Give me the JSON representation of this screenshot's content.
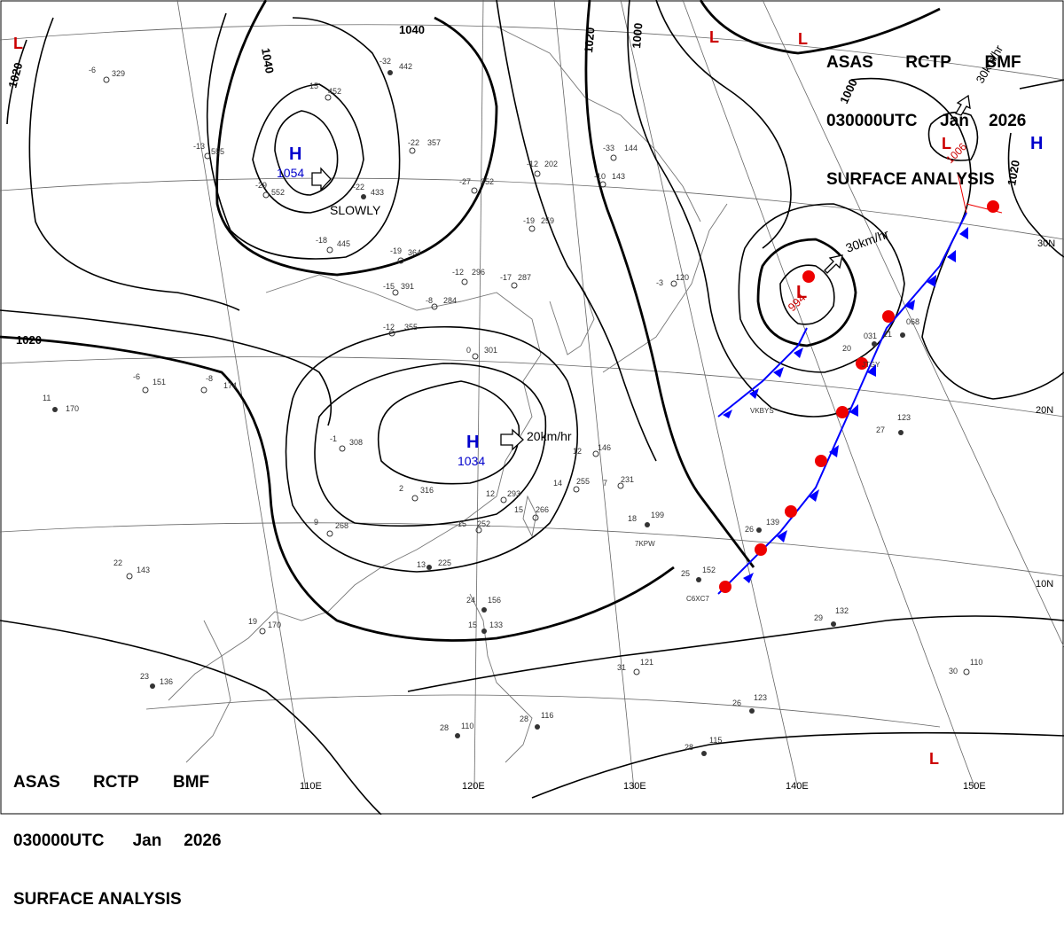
{
  "header": {
    "center": "ASAS",
    "issuer": "RCTP",
    "agency": "BMF",
    "time": "030000UTC",
    "month": "Jan",
    "year": "2026",
    "title": "SURFACE ANALYSIS"
  },
  "pressure_centers": [
    {
      "type": "H",
      "pressure": "1054",
      "motion": "SLOWLY",
      "color": "#0000cc"
    },
    {
      "type": "H",
      "pressure": "1034",
      "motion": "20km/hr",
      "color": "#0000cc"
    },
    {
      "type": "L",
      "pressure": "994",
      "motion": "30km/hr",
      "color": "#cc0000"
    },
    {
      "type": "L",
      "pressure": "1006",
      "motion": "30km/hr",
      "color": "#cc0000"
    },
    {
      "type": "H",
      "pressure": "",
      "motion": "",
      "color": "#0000cc"
    },
    {
      "type": "L",
      "pressure": "",
      "motion": "",
      "color": "#cc0000"
    }
  ],
  "isobar_labels": [
    "1040",
    "1040",
    "1020",
    "1020",
    "1020",
    "1000",
    "1000",
    "1020"
  ],
  "longitude_labels": [
    "110E",
    "120E",
    "130E",
    "140E",
    "150E"
  ],
  "latitude_labels": [
    "30N",
    "20N",
    "10N"
  ],
  "stations": [
    {
      "temp": "-6",
      "pres": "329"
    },
    {
      "temp": "-15",
      "pres": "452"
    },
    {
      "temp": "-32",
      "pres": "442"
    },
    {
      "temp": "-13",
      "pres": "555"
    },
    {
      "temp": "-29",
      "pres": "552"
    },
    {
      "temp": "-22",
      "pres": "433"
    },
    {
      "temp": "-22",
      "pres": "357"
    },
    {
      "temp": "-27",
      "pres": "352"
    },
    {
      "temp": "-12",
      "pres": "202"
    },
    {
      "temp": "-33",
      "pres": "144"
    },
    {
      "temp": "-10",
      "pres": "143"
    },
    {
      "temp": "-18",
      "pres": "445"
    },
    {
      "temp": "-19",
      "pres": "364"
    },
    {
      "temp": "-19",
      "pres": "259"
    },
    {
      "temp": "-12",
      "pres": "296"
    },
    {
      "temp": "-17",
      "pres": "287"
    },
    {
      "temp": "-15",
      "pres": "391"
    },
    {
      "temp": "-8",
      "pres": "284"
    },
    {
      "temp": "-12",
      "pres": "355"
    },
    {
      "temp": "-3",
      "pres": "120"
    },
    {
      "temp": "0",
      "pres": "301"
    },
    {
      "temp": "-6",
      "pres": "151"
    },
    {
      "temp": "-8",
      "pres": "174"
    },
    {
      "temp": "11",
      "pres": "170"
    },
    {
      "temp": "-1",
      "pres": "308"
    },
    {
      "temp": "2",
      "pres": "316"
    },
    {
      "temp": "9",
      "pres": "268"
    },
    {
      "temp": "12",
      "pres": "293"
    },
    {
      "temp": "15",
      "pres": "252"
    },
    {
      "temp": "15",
      "pres": "266"
    },
    {
      "temp": "14",
      "pres": "255"
    },
    {
      "temp": "18",
      "pres": "199"
    },
    {
      "temp": "7",
      "pres": "231"
    },
    {
      "temp": "12",
      "pres": "146"
    },
    {
      "temp": "22",
      "pres": "143"
    },
    {
      "temp": "19",
      "pres": "170"
    },
    {
      "temp": "13",
      "pres": "225"
    },
    {
      "temp": "24",
      "pres": "156"
    },
    {
      "temp": "15",
      "pres": "133"
    },
    {
      "temp": "23",
      "pres": "136"
    },
    {
      "temp": "25",
      "pres": "152"
    },
    {
      "temp": "26",
      "pres": "139"
    },
    {
      "temp": "29",
      "pres": "132"
    },
    {
      "temp": "31",
      "pres": "121"
    },
    {
      "temp": "30",
      "pres": "110"
    },
    {
      "temp": "26",
      "pres": "123"
    },
    {
      "temp": "28",
      "pres": "115"
    },
    {
      "temp": "28",
      "pres": "110"
    },
    {
      "temp": "28",
      "pres": "116"
    },
    {
      "temp": "27",
      "pres": "123"
    },
    {
      "temp": "20",
      "pres": "031"
    },
    {
      "temp": "21",
      "pres": "068"
    }
  ],
  "ship_ids": [
    "VKBYS",
    "7KPW",
    "C6XC7",
    "JTGY"
  ],
  "colors": {
    "isobar": "#000000",
    "high": "#0000cc",
    "low": "#cc0000",
    "cold_front": "#0000ff",
    "warm_front": "#ee0000",
    "coast": "#666666",
    "grid": "#555555"
  }
}
